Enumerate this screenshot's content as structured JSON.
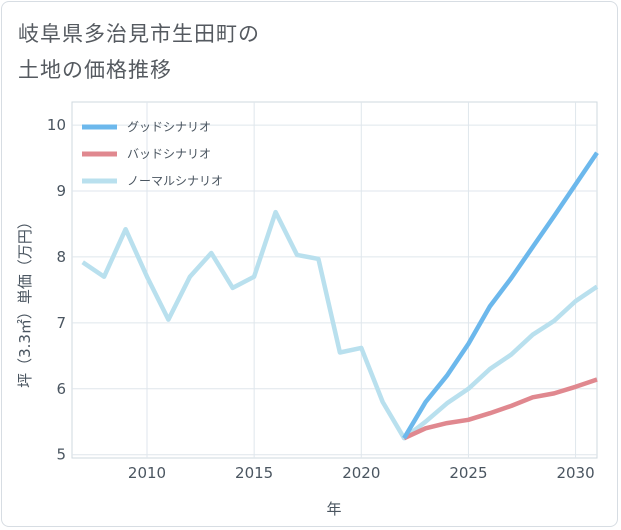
{
  "title_lines": [
    "岐阜県多治見市生田町の",
    "土地の価格推移"
  ],
  "chart_data": {
    "type": "line",
    "title": "岐阜県多治見市生田町の土地の価格推移",
    "xlabel": "年",
    "ylabel": "坪（3.3㎡）単価（万円）",
    "xlim": [
      2006.5,
      2031
    ],
    "ylim": [
      4.95,
      10.35
    ],
    "x_ticks": [
      2010,
      2015,
      2020,
      2025,
      2030
    ],
    "y_ticks": [
      5,
      6,
      7,
      8,
      9,
      10
    ],
    "legend_position": "top-left",
    "series": [
      {
        "name": "グッドシナリオ",
        "color": "#6cb8ec",
        "x": [
          2022,
          2023,
          2024,
          2025,
          2026,
          2027,
          2028,
          2029,
          2030,
          2031
        ],
        "values": [
          5.25,
          5.8,
          6.2,
          6.68,
          7.25,
          7.68,
          8.15,
          8.62,
          9.1,
          9.58
        ]
      },
      {
        "name": "バッドシナリオ",
        "color": "#e0888f",
        "x": [
          2022,
          2023,
          2024,
          2025,
          2026,
          2027,
          2028,
          2029,
          2030,
          2031
        ],
        "values": [
          5.25,
          5.4,
          5.48,
          5.53,
          5.63,
          5.74,
          5.87,
          5.93,
          6.03,
          6.14
        ]
      },
      {
        "name": "ノーマルシナリオ",
        "color": "#b9e0ee",
        "x": [
          2007,
          2008,
          2009,
          2010,
          2011,
          2012,
          2013,
          2014,
          2015,
          2016,
          2017,
          2018,
          2019,
          2020,
          2021,
          2022,
          2023,
          2024,
          2025,
          2026,
          2027,
          2028,
          2029,
          2030,
          2031
        ],
        "values": [
          7.92,
          7.7,
          8.42,
          7.7,
          7.05,
          7.7,
          8.06,
          7.53,
          7.7,
          8.68,
          8.03,
          7.97,
          6.55,
          6.62,
          5.8,
          5.25,
          5.5,
          5.78,
          6.0,
          6.3,
          6.52,
          6.82,
          7.03,
          7.33,
          7.55
        ]
      }
    ]
  }
}
